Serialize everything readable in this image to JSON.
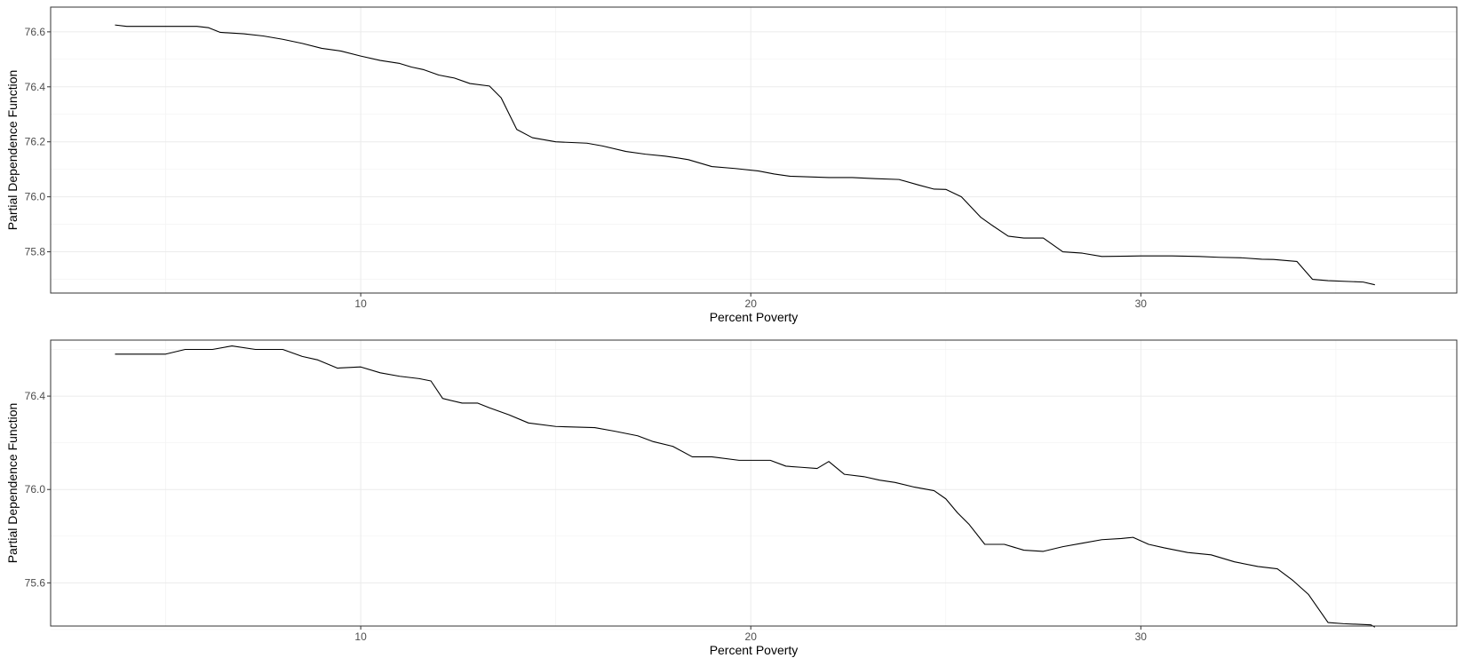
{
  "chart_data": [
    {
      "type": "line",
      "title": "",
      "xlabel": "Percent Poverty",
      "ylabel": "Partial Dependence Function",
      "xlim": [
        2.05,
        38.1
      ],
      "ylim": [
        75.65,
        76.69
      ],
      "x_ticks": [
        10,
        20,
        30
      ],
      "x_minor_ticks": [
        5,
        15,
        25,
        35
      ],
      "y_ticks": [
        75.8,
        76.0,
        76.2,
        76.4,
        76.6
      ],
      "y_tick_labels": [
        "75.8",
        "76.0",
        "76.2",
        "76.4",
        "76.6"
      ],
      "y_minor_ticks": [
        75.7,
        75.9,
        76.1,
        76.3,
        76.5
      ],
      "grid": true,
      "series": [
        {
          "color": "#000000",
          "x": [
            3.7,
            4.0,
            5.0,
            5.8,
            6.1,
            6.4,
            7.0,
            7.5,
            8.0,
            8.5,
            9.0,
            9.5,
            10.0,
            10.5,
            11.0,
            11.3,
            11.6,
            12.0,
            12.4,
            12.8,
            13.3,
            13.6,
            14.0,
            14.4,
            15.0,
            15.8,
            16.2,
            16.8,
            17.3,
            17.8,
            18.1,
            18.4,
            19.0,
            19.6,
            20.2,
            20.6,
            21.0,
            22.0,
            22.6,
            23.2,
            23.8,
            24.3,
            24.7,
            25.0,
            25.4,
            25.9,
            26.2,
            26.6,
            27.0,
            27.5,
            28.0,
            28.5,
            29.0,
            30.0,
            30.8,
            31.5,
            32.0,
            32.6,
            33.1,
            33.4,
            34.0,
            34.4,
            34.8,
            35.7,
            36.0
          ],
          "y": [
            76.625,
            76.62,
            76.62,
            76.62,
            76.615,
            76.598,
            76.593,
            76.585,
            76.573,
            76.558,
            76.54,
            76.53,
            76.512,
            76.496,
            76.485,
            76.472,
            76.463,
            76.443,
            76.432,
            76.412,
            76.403,
            76.36,
            76.245,
            76.215,
            76.2,
            76.195,
            76.185,
            76.165,
            76.155,
            76.148,
            76.142,
            76.135,
            76.11,
            76.103,
            76.094,
            76.083,
            76.075,
            76.07,
            76.07,
            76.066,
            76.063,
            76.043,
            76.028,
            76.027,
            76.0,
            75.925,
            75.895,
            75.857,
            75.85,
            75.85,
            75.8,
            75.795,
            75.783,
            75.785,
            75.785,
            75.783,
            75.78,
            75.778,
            75.773,
            75.772,
            75.765,
            75.7,
            75.695,
            75.69,
            75.68
          ]
        }
      ]
    },
    {
      "type": "line",
      "title": "",
      "xlabel": "Percent Poverty",
      "ylabel": "Partial Dependence Function",
      "xlim": [
        2.05,
        38.1
      ],
      "ylim": [
        75.415,
        76.64
      ],
      "x_ticks": [
        10,
        20,
        30
      ],
      "x_minor_ticks": [
        5,
        15,
        25,
        35
      ],
      "y_ticks": [
        75.6,
        76.0,
        76.4
      ],
      "y_tick_labels": [
        "75.6",
        "76.0",
        "76.4"
      ],
      "y_minor_ticks": [
        75.4,
        75.8,
        76.2,
        76.6
      ],
      "grid": true,
      "series": [
        {
          "color": "#000000",
          "x": [
            3.7,
            4.0,
            5.0,
            5.5,
            6.2,
            6.7,
            7.3,
            8.0,
            8.5,
            8.9,
            9.4,
            10.0,
            10.5,
            11.0,
            11.5,
            11.8,
            12.1,
            12.6,
            13.0,
            13.3,
            13.8,
            14.3,
            15.0,
            16.0,
            16.5,
            17.1,
            17.5,
            18.0,
            18.5,
            19.0,
            19.7,
            20.1,
            20.5,
            20.9,
            21.3,
            21.7,
            22.0,
            22.4,
            22.9,
            23.3,
            23.7,
            24.2,
            24.7,
            25.0,
            25.3,
            25.6,
            26.0,
            26.5,
            27.0,
            27.5,
            28.0,
            28.5,
            29.0,
            29.5,
            29.8,
            30.2,
            30.6,
            31.2,
            31.8,
            32.4,
            33.0,
            33.5,
            33.9,
            34.3,
            34.8,
            35.2,
            35.9,
            36.0
          ],
          "y": [
            76.58,
            76.58,
            76.58,
            76.6,
            76.6,
            76.615,
            76.6,
            76.6,
            76.57,
            76.555,
            76.52,
            76.525,
            76.5,
            76.485,
            76.475,
            76.465,
            76.39,
            76.37,
            76.37,
            76.35,
            76.32,
            76.285,
            76.27,
            76.265,
            76.25,
            76.23,
            76.205,
            76.185,
            76.14,
            76.14,
            76.125,
            76.125,
            76.125,
            76.1,
            76.095,
            76.09,
            76.12,
            76.065,
            76.055,
            76.04,
            76.03,
            76.01,
            75.995,
            75.96,
            75.9,
            75.85,
            75.765,
            75.765,
            75.74,
            75.735,
            75.755,
            75.77,
            75.785,
            75.79,
            75.795,
            75.765,
            75.75,
            75.73,
            75.72,
            75.69,
            75.67,
            75.66,
            75.61,
            75.55,
            75.43,
            75.425,
            75.42,
            75.41
          ]
        }
      ]
    }
  ]
}
